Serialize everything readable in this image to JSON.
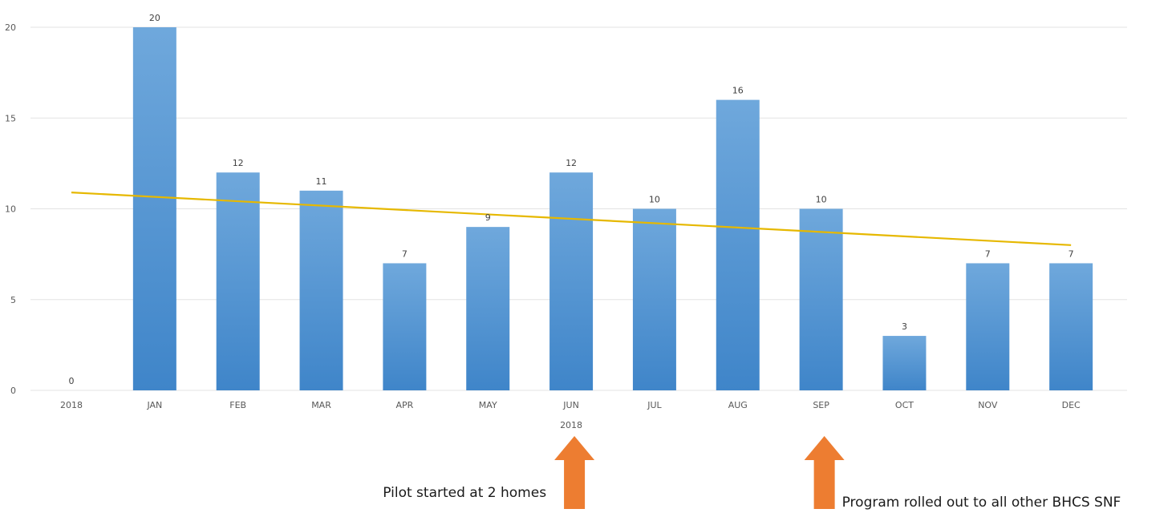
{
  "colors": {
    "bar_top": "#6fa8dc",
    "bar_bottom": "#3f85c9",
    "trendline": "#e6b800",
    "arrow": "#ed7d31",
    "gridline": "#e3e3e3"
  },
  "chart_data": {
    "type": "bar",
    "title": "",
    "xlabel": "",
    "ylabel": "",
    "categories": [
      "2018",
      "JAN",
      "FEB",
      "MAR",
      "APR",
      "MAY",
      "JUN",
      "JUL",
      "AUG",
      "SEP",
      "OCT",
      "NOV",
      "DEC"
    ],
    "values": [
      0,
      20,
      12,
      11,
      7,
      9,
      12,
      10,
      16,
      10,
      3,
      7,
      7
    ],
    "data_labels": [
      "0",
      "20",
      "12",
      "11",
      "7",
      "9",
      "12",
      "10",
      "16",
      "10",
      "3",
      "7",
      "7"
    ],
    "group_label": "2018",
    "ylim": [
      0,
      20
    ],
    "yticks": [
      "0",
      "5",
      "10",
      "15",
      "20"
    ],
    "grid": true,
    "legend": "none",
    "trendline": {
      "type": "linear",
      "start": 10.9,
      "end": 8.0
    }
  },
  "annotations": [
    {
      "text": "Pilot started at 2 homes",
      "category": "JUN"
    },
    {
      "text": "Program rolled out to all other BHCS SNF",
      "category": "SEP"
    }
  ]
}
